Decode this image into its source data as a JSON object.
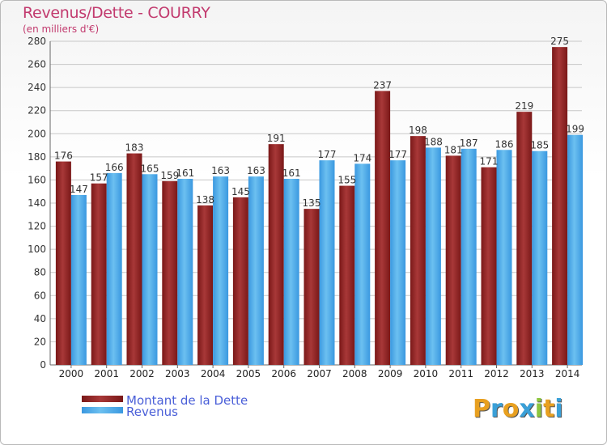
{
  "title": "Revenus/Dette - COURRY",
  "subtitle": "(en milliers d'€)",
  "brand": {
    "letters": [
      "P",
      "r",
      "o",
      "x",
      "i",
      "t",
      "i"
    ],
    "colors": [
      "#e8a020",
      "#3aa0d8",
      "#e8a020",
      "#3aa0d8",
      "#8cc63e",
      "#e8a020",
      "#3aa0d8"
    ]
  },
  "colors": {
    "dette": "#7a1818",
    "dette_light": "#a83838",
    "revenus": "#3a98e0",
    "revenus_light": "#6cc0f0",
    "grid": "#c8c8c8",
    "title": "#c23a6e"
  },
  "chart_data": {
    "type": "bar",
    "categories": [
      "2000",
      "2001",
      "2002",
      "2003",
      "2004",
      "2005",
      "2006",
      "2007",
      "2008",
      "2009",
      "2010",
      "2011",
      "2012",
      "2013",
      "2014"
    ],
    "series": [
      {
        "name": "Montant de la Dette",
        "values": [
          176,
          157,
          183,
          159,
          138,
          145,
          191,
          135,
          155,
          237,
          198,
          181,
          171,
          219,
          275
        ]
      },
      {
        "name": "Revenus",
        "values": [
          147,
          166,
          165,
          161,
          163,
          163,
          161,
          177,
          174,
          177,
          188,
          187,
          186,
          185,
          199
        ]
      }
    ],
    "ylim": [
      0,
      280
    ],
    "yticks": [
      0,
      20,
      40,
      60,
      80,
      100,
      120,
      140,
      160,
      180,
      200,
      220,
      240,
      260,
      280
    ],
    "grid": true,
    "legend_position": "bottom-left"
  }
}
